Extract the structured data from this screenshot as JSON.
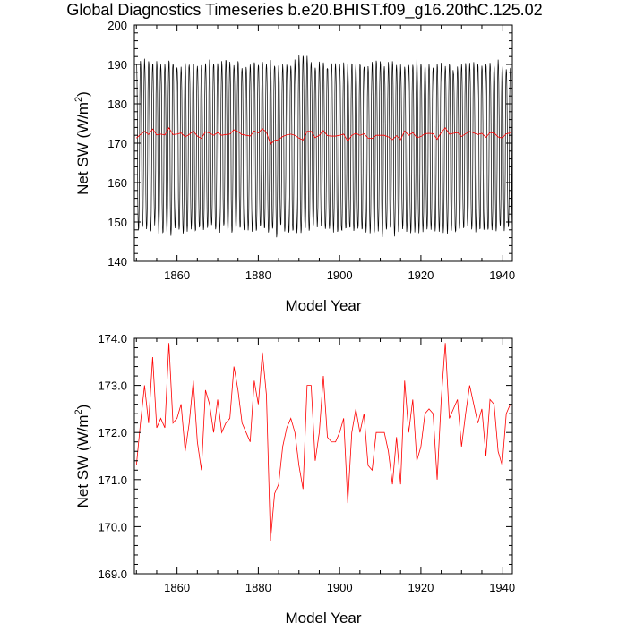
{
  "title": "Global Diagnostics Timeseries b.e20.BHIST.f09_g16.20thC.125.02",
  "colors": {
    "monthly": "#000000",
    "annual": "#ff0000",
    "axis": "#000000"
  },
  "chart_data": [
    {
      "type": "line",
      "xlabel": "Model Year",
      "ylabel": "Net SW (W/m",
      "ylabel_sup": "2",
      "ylabel_close": ")",
      "xlim": [
        1849.5,
        1942.5
      ],
      "ylim": [
        140,
        200
      ],
      "xticks": [
        1860,
        1880,
        1900,
        1920,
        1940
      ],
      "xtick_labels": [
        "1860",
        "1880",
        "1900",
        "1920",
        "1940"
      ],
      "yticks": [
        140,
        150,
        160,
        170,
        180,
        190,
        200
      ],
      "ytick_labels": [
        "140",
        "150",
        "160",
        "170",
        "180",
        "190",
        "200"
      ],
      "grid": false,
      "series": [
        {
          "kind": "monthly",
          "color": "#000000",
          "start_year": 1850,
          "annual_max": [
            190.5,
            190.8,
            191.0,
            190.7,
            190.3,
            190.9,
            190.1,
            189.8,
            191.2,
            190.6,
            189.5,
            189.0,
            191.0,
            190.2,
            190.6,
            190.0,
            189.7,
            190.8,
            191.4,
            190.3,
            189.8,
            190.9,
            191.6,
            190.4,
            190.1,
            190.8,
            189.5,
            189.6,
            190.5,
            191.0,
            190.2,
            190.7,
            190.1,
            190.9,
            189.9,
            190.3,
            189.7,
            190.4,
            189.8,
            190.8,
            192.2,
            192.5,
            191.7,
            190.2,
            189.8,
            190.6,
            190.9,
            189.4,
            190.8,
            190.0,
            189.6,
            190.2,
            189.8,
            190.5,
            189.9,
            190.4,
            189.8,
            189.9,
            190.4,
            190.9,
            191.1,
            189.5,
            190.2,
            190.6,
            189.6,
            189.8,
            189.9,
            190.3,
            189.9,
            191.0,
            190.1,
            190.4,
            189.7,
            189.3,
            190.1,
            190.3,
            189.6,
            190.7,
            188.4,
            189.8,
            189.7,
            190.8,
            190.2,
            190.5,
            190.4,
            190.2,
            190.6,
            190.1,
            190.5,
            190.7,
            189.8,
            188.8,
            189.5
          ],
          "annual_min": [
            147.5,
            148.1,
            148.3,
            147.4,
            149.6,
            147.5,
            146.7,
            147.9,
            146.6,
            148.2,
            147.7,
            147.0,
            147.6,
            148.5,
            147.4,
            148.2,
            147.8,
            148.9,
            148.6,
            147.7,
            147.6,
            148.5,
            147.9,
            147.3,
            148.2,
            148.3,
            147.5,
            148.1,
            147.7,
            147.4,
            148.3,
            148.1,
            147.6,
            148.0,
            146.3,
            148.8,
            147.2,
            147.1,
            147.6,
            147.5,
            147.5,
            148.0,
            147.3,
            148.4,
            148.7,
            148.9,
            147.6,
            148.0,
            147.8,
            147.3,
            147.4,
            148.0,
            148.2,
            147.6,
            147.8,
            147.7,
            147.5,
            147.6,
            147.2,
            147.8,
            146.6,
            147.5,
            148.0,
            146.7,
            147.4,
            148.3,
            147.5,
            147.2,
            147.7,
            147.6,
            147.8,
            148.3,
            147.9,
            147.8,
            147.6,
            147.7,
            147.5,
            148.3,
            147.1,
            147.9,
            148.2,
            148.5,
            147.6,
            147.8,
            147.9,
            147.7,
            147.5,
            147.8,
            147.5,
            148.5,
            147.7,
            148.4,
            147.9
          ]
        },
        {
          "kind": "annual",
          "color": "#ff0000",
          "x": [
            1850,
            1851,
            1852,
            1853,
            1854,
            1855,
            1856,
            1857,
            1858,
            1859,
            1860,
            1861,
            1862,
            1863,
            1864,
            1865,
            1866,
            1867,
            1868,
            1869,
            1870,
            1871,
            1872,
            1873,
            1874,
            1875,
            1876,
            1877,
            1878,
            1879,
            1880,
            1881,
            1882,
            1883,
            1884,
            1885,
            1886,
            1887,
            1888,
            1889,
            1890,
            1891,
            1892,
            1893,
            1894,
            1895,
            1896,
            1897,
            1898,
            1899,
            1900,
            1901,
            1902,
            1903,
            1904,
            1905,
            1906,
            1907,
            1908,
            1909,
            1910,
            1911,
            1912,
            1913,
            1914,
            1915,
            1916,
            1917,
            1918,
            1919,
            1920,
            1921,
            1922,
            1923,
            1924,
            1925,
            1926,
            1927,
            1928,
            1929,
            1930,
            1931,
            1932,
            1933,
            1934,
            1935,
            1936,
            1937,
            1938,
            1939,
            1940,
            1941,
            1942
          ],
          "y": [
            171.3,
            172.2,
            173.0,
            172.2,
            173.6,
            172.1,
            172.3,
            172.1,
            173.9,
            172.2,
            172.3,
            172.6,
            171.6,
            172.2,
            173.1,
            171.8,
            171.2,
            172.9,
            172.6,
            172.0,
            172.7,
            172.0,
            172.2,
            172.3,
            173.4,
            172.9,
            172.2,
            172.0,
            171.8,
            173.1,
            172.6,
            173.7,
            172.8,
            169.7,
            170.7,
            170.9,
            171.7,
            172.1,
            172.3,
            172.0,
            171.3,
            170.8,
            173.0,
            173.0,
            171.4,
            172.0,
            173.2,
            171.9,
            171.8,
            171.8,
            172.0,
            172.3,
            170.5,
            172.0,
            172.5,
            172.0,
            172.4,
            171.3,
            171.2,
            172.0,
            172.0,
            172.0,
            171.6,
            170.9,
            171.9,
            170.9,
            173.1,
            172.0,
            172.7,
            171.4,
            171.7,
            172.4,
            172.5,
            172.4,
            171.0,
            172.7,
            173.9,
            172.3,
            172.5,
            172.7,
            171.7,
            172.4,
            173.0,
            172.6,
            172.2,
            172.5,
            171.5,
            172.7,
            172.6,
            171.6,
            171.3,
            172.4,
            172.6
          ]
        }
      ]
    },
    {
      "type": "line",
      "xlabel": "Model Year",
      "ylabel": "Net SW (W/m",
      "ylabel_sup": "2",
      "ylabel_close": ")",
      "xlim": [
        1849.5,
        1942.5
      ],
      "ylim": [
        169.0,
        174.0
      ],
      "xticks": [
        1860,
        1880,
        1900,
        1920,
        1940
      ],
      "xtick_labels": [
        "1860",
        "1880",
        "1900",
        "1920",
        "1940"
      ],
      "yticks": [
        169.0,
        170.0,
        171.0,
        172.0,
        173.0,
        174.0
      ],
      "ytick_labels": [
        "169.0",
        "170.0",
        "171.0",
        "172.0",
        "173.0",
        "174.0"
      ],
      "grid": false,
      "series": [
        {
          "kind": "annual",
          "color": "#ff0000",
          "x": [
            1850,
            1851,
            1852,
            1853,
            1854,
            1855,
            1856,
            1857,
            1858,
            1859,
            1860,
            1861,
            1862,
            1863,
            1864,
            1865,
            1866,
            1867,
            1868,
            1869,
            1870,
            1871,
            1872,
            1873,
            1874,
            1875,
            1876,
            1877,
            1878,
            1879,
            1880,
            1881,
            1882,
            1883,
            1884,
            1885,
            1886,
            1887,
            1888,
            1889,
            1890,
            1891,
            1892,
            1893,
            1894,
            1895,
            1896,
            1897,
            1898,
            1899,
            1900,
            1901,
            1902,
            1903,
            1904,
            1905,
            1906,
            1907,
            1908,
            1909,
            1910,
            1911,
            1912,
            1913,
            1914,
            1915,
            1916,
            1917,
            1918,
            1919,
            1920,
            1921,
            1922,
            1923,
            1924,
            1925,
            1926,
            1927,
            1928,
            1929,
            1930,
            1931,
            1932,
            1933,
            1934,
            1935,
            1936,
            1937,
            1938,
            1939,
            1940,
            1941,
            1942
          ],
          "y": [
            171.3,
            172.2,
            173.0,
            172.2,
            173.6,
            172.1,
            172.3,
            172.1,
            173.9,
            172.2,
            172.3,
            172.6,
            171.6,
            172.2,
            173.1,
            171.8,
            171.2,
            172.9,
            172.6,
            172.0,
            172.7,
            172.0,
            172.2,
            172.3,
            173.4,
            172.9,
            172.2,
            172.0,
            171.8,
            173.1,
            172.6,
            173.7,
            172.8,
            169.7,
            170.7,
            170.9,
            171.7,
            172.1,
            172.3,
            172.0,
            171.3,
            170.8,
            173.0,
            173.0,
            171.4,
            172.0,
            173.2,
            171.9,
            171.8,
            171.8,
            172.0,
            172.3,
            170.5,
            172.0,
            172.5,
            172.0,
            172.4,
            171.3,
            171.2,
            172.0,
            172.0,
            172.0,
            171.6,
            170.9,
            171.9,
            170.9,
            173.1,
            172.0,
            172.7,
            171.4,
            171.7,
            172.4,
            172.5,
            172.4,
            171.0,
            172.7,
            173.9,
            172.3,
            172.5,
            172.7,
            171.7,
            172.4,
            173.0,
            172.6,
            172.2,
            172.5,
            171.5,
            172.7,
            172.6,
            171.6,
            171.3,
            172.4,
            172.6
          ]
        }
      ]
    }
  ]
}
